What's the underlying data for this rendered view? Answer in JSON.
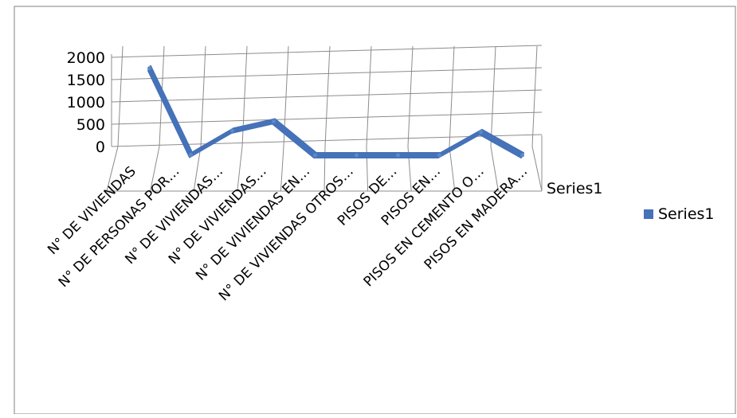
{
  "chart_data": {
    "type": "line",
    "view": "3d",
    "title": "",
    "xlabel": "",
    "ylabel": "",
    "ylim": [
      0,
      2000
    ],
    "yticks": [
      "0",
      "500",
      "1000",
      "1500",
      "2000"
    ],
    "depth_axis_label": "Series1",
    "categories": [
      "N° DE VIVIENDAS",
      "N° DE PERSONAS POR…",
      "N° DE VIVIENDAS…",
      "N° DE VIVIENDAS…",
      "N° DE VIVIENDAS EN…",
      "N° DE VIVIENDAS OTROS…",
      "PISOS DE…",
      "PISOS EN…",
      "PISOS EN CEMENTO O…",
      "PISOS EN MADERA…"
    ],
    "series": [
      {
        "name": "Series1",
        "values": [
          1950,
          10,
          550,
          760,
          0,
          0,
          0,
          0,
          520,
          0
        ]
      }
    ],
    "grid": true,
    "legend": {
      "position": "right",
      "label": "Series1"
    },
    "colors": {
      "series": "#4572b8",
      "series_top": "#5a89cc",
      "grid": "#8c8c8c",
      "frame": "#808080"
    }
  }
}
